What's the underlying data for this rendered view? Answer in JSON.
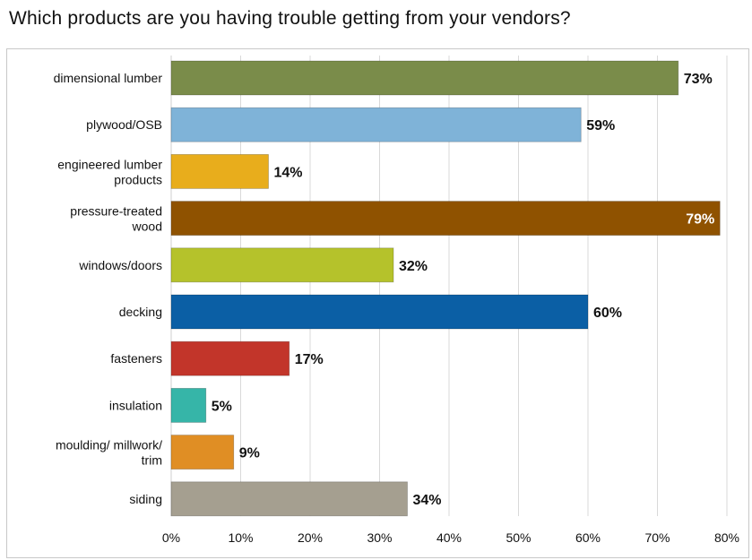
{
  "title": "Which products are you having trouble getting from your vendors?",
  "chart_data": {
    "type": "bar",
    "orientation": "horizontal",
    "title": "Which products are you having trouble getting from your vendors?",
    "xlabel": "",
    "ylabel": "",
    "xlim": [
      0,
      80
    ],
    "grid": true,
    "categories": [
      [
        "dimensional lumber"
      ],
      [
        "plywood/OSB"
      ],
      [
        "engineered lumber",
        "products"
      ],
      [
        "pressure-treated",
        "wood"
      ],
      [
        "windows/doors"
      ],
      [
        "decking"
      ],
      [
        "fasteners"
      ],
      [
        "insulation"
      ],
      [
        "moulding/ millwork/",
        "trim"
      ],
      [
        "siding"
      ]
    ],
    "values": [
      73,
      59,
      14,
      79,
      32,
      60,
      17,
      5,
      9,
      34
    ],
    "value_labels": [
      "73%",
      "59%",
      "14%",
      "79%",
      "32%",
      "60%",
      "17%",
      "5%",
      "9%",
      "34%"
    ],
    "colors": [
      "#7a8c4a",
      "#7fb3d8",
      "#e8ad1c",
      "#8f5200",
      "#b5c22b",
      "#0b5fa5",
      "#c2352a",
      "#36b5a8",
      "#e08e24",
      "#a59f90"
    ],
    "label_inside": [
      false,
      false,
      false,
      true,
      false,
      false,
      false,
      false,
      false,
      false
    ],
    "xticks": [
      0,
      10,
      20,
      30,
      40,
      50,
      60,
      70,
      80
    ],
    "xtick_labels": [
      "0%",
      "10%",
      "20%",
      "30%",
      "40%",
      "50%",
      "60%",
      "70%",
      "80%"
    ]
  }
}
